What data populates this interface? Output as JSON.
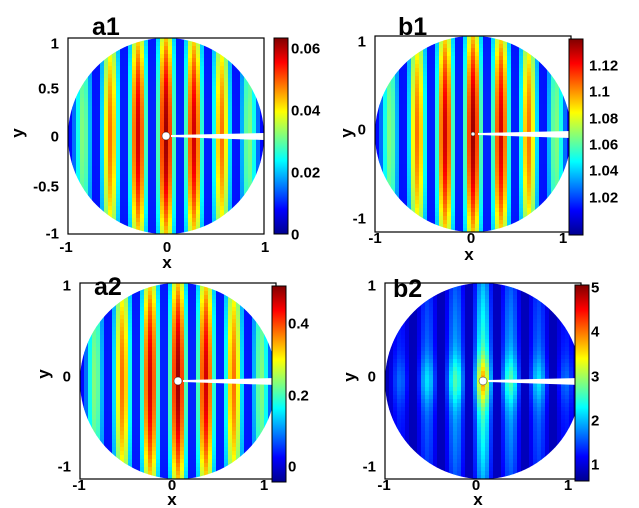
{
  "chart_data": [
    {
      "panel": "a1",
      "type": "heatmap",
      "xlabel": "x",
      "ylabel": "y",
      "xlim": [
        -1,
        1
      ],
      "ylim": [
        -1,
        1
      ],
      "xticks": [
        "-1",
        "0",
        "1"
      ],
      "yticks": [
        "1",
        "0.5",
        "0",
        "-0.5",
        "-1"
      ],
      "colorbar": {
        "range": [
          0,
          0.065
        ],
        "ticks": [
          "0.06",
          "0.04",
          "0.02",
          "0"
        ]
      },
      "fringes": 7,
      "center_bias": 0.15
    },
    {
      "panel": "b1",
      "type": "heatmap",
      "xlabel": "x",
      "ylabel": "y",
      "xlim": [
        -1,
        1
      ],
      "ylim": [
        -1,
        1
      ],
      "xticks": [
        "-1",
        "0",
        "1"
      ],
      "yticks": [
        "1",
        "0",
        "-1"
      ],
      "colorbar": {
        "range": [
          1.0,
          1.135
        ],
        "ticks": [
          "1.12",
          "1.1",
          "1.08",
          "1.06",
          "1.04",
          "1.02"
        ]
      },
      "fringes": 7,
      "center_bias": 0.2
    },
    {
      "panel": "a2",
      "type": "heatmap",
      "xlabel": "x",
      "ylabel": "y",
      "xlim": [
        -1,
        1
      ],
      "ylim": [
        -1,
        1
      ],
      "xticks": [
        "-1",
        "0",
        "1"
      ],
      "yticks": [
        "1",
        "0",
        "-1"
      ],
      "colorbar": {
        "range": [
          0,
          0.5
        ],
        "ticks": [
          "0.4",
          "0.2",
          "0"
        ]
      },
      "fringes": 7,
      "center_bias": 0.3
    },
    {
      "panel": "b2",
      "type": "heatmap",
      "xlabel": "x",
      "ylabel": "y",
      "xlim": [
        -1,
        1
      ],
      "ylim": [
        -1,
        1
      ],
      "xticks": [
        "-1",
        "0",
        "1"
      ],
      "yticks": [
        "1",
        "0",
        "-1"
      ],
      "colorbar": {
        "range": [
          1,
          5
        ],
        "ticks": [
          "5",
          "4",
          "3",
          "2",
          "1"
        ]
      },
      "fringes": 7,
      "center_bias": 0.9
    }
  ]
}
